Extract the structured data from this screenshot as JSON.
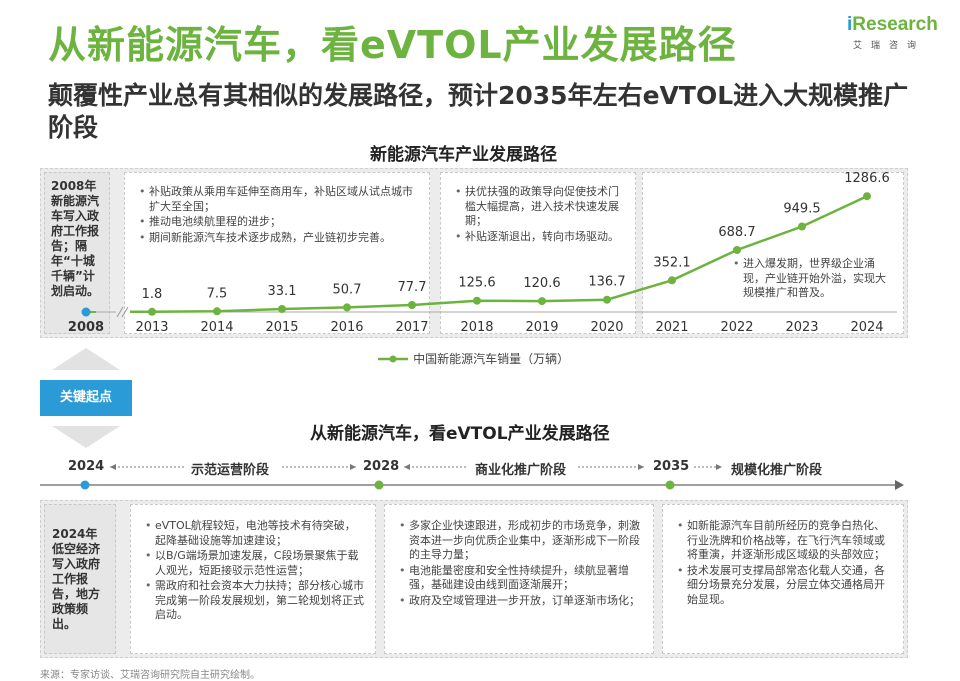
{
  "header": {
    "title": "从新能源汽车，看eVTOL产业发展路径",
    "subtitle": "颠覆性产业总有其相似的发展路径，预计2035年左右eVTOL进入大规模推广阶段"
  },
  "logo": {
    "brand_i": "i",
    "brand_rest": "Research",
    "cn": "艾瑞咨询"
  },
  "chart_section_title": "新能源汽车产业发展路径",
  "chart_side_note": "2008年新能源汽车写入政府工作报告；隔年“十城千辆”计划启动。",
  "chart_data": {
    "type": "line",
    "title": "新能源汽车产业发展路径",
    "x_prefix": "2008",
    "categories": [
      "2013",
      "2014",
      "2015",
      "2016",
      "2017",
      "2018",
      "2019",
      "2020",
      "2021",
      "2022",
      "2023",
      "2024"
    ],
    "series": [
      {
        "name": "中国新能源汽车销量（万辆）",
        "values": [
          1.8,
          7.5,
          33.1,
          50.7,
          77.7,
          125.6,
          120.6,
          136.7,
          352.1,
          688.7,
          949.5,
          1286.6
        ]
      }
    ],
    "value_labels": [
      "1.8",
      "7.5",
      "33.1",
      "50.7",
      "77.7",
      "125.6",
      "120.6",
      "136.7",
      "352.1",
      "688.7",
      "949.5",
      "1286.6"
    ],
    "ylim": [
      0,
      1400
    ],
    "grid": false,
    "legend_position": "bottom",
    "color": "#6db33f"
  },
  "chart_notes": [
    [
      "补贴政策从乘用车延伸至商用车，补贴区域从试点城市扩大至全国；",
      "推动电池续航里程的进步；",
      "期间新能源汽车技术逐步成熟，产业链初步完善。"
    ],
    [
      "扶优扶强的政策导向促使技术门槛大幅提高，进入技术快速发展期；",
      "补贴逐渐退出，转向市场驱动。"
    ],
    [
      "进入爆发期，世界级企业涌现，产业链开始外溢，实现大规模推广和普及。"
    ]
  ],
  "key_point": "关键起点",
  "timeline": {
    "title": "从新能源汽车，看eVTOL产业发展路径",
    "years": [
      "2024",
      "2028",
      "2035"
    ],
    "stages": [
      "示范运营阶段",
      "商业化推广阶段",
      "规模化推广阶段"
    ]
  },
  "bottom_side_note": "2024年低空经济写入政府工作报告，地方政策频出。",
  "bottom_notes": [
    [
      "eVTOL航程较短，电池等技术有待突破，起降基础设施等加速建设；",
      "以B/G端场景加速发展，C段场景聚焦于载人观光，短距接驳示范性运营；",
      "需政府和社会资本大力扶持；部分核心城市完成第一阶段发展规划，第二轮规划将正式启动。"
    ],
    [
      "多家企业快速跟进，形成初步的市场竞争，刺激资本进一步向优质企业集中，逐渐形成下一阶段的主导力量；",
      "电池能量密度和安全性持续提升，续航显著增强，基础建设由线到面逐渐展开；",
      "政府及空域管理进一步开放，订单逐渐市场化；"
    ],
    [
      "如新能源汽车目前所经历的竞争白热化、行业洗牌和价格战等，在飞行汽车领域或将重演，并逐渐形成区域级的头部效应；",
      "技术发展可支撑局部常态化载人交通，各细分场景充分发展，分层立体交通格局开始显现。"
    ]
  ],
  "source": "来源：专家访谈、艾瑞咨询研究院自主研究绘制。"
}
